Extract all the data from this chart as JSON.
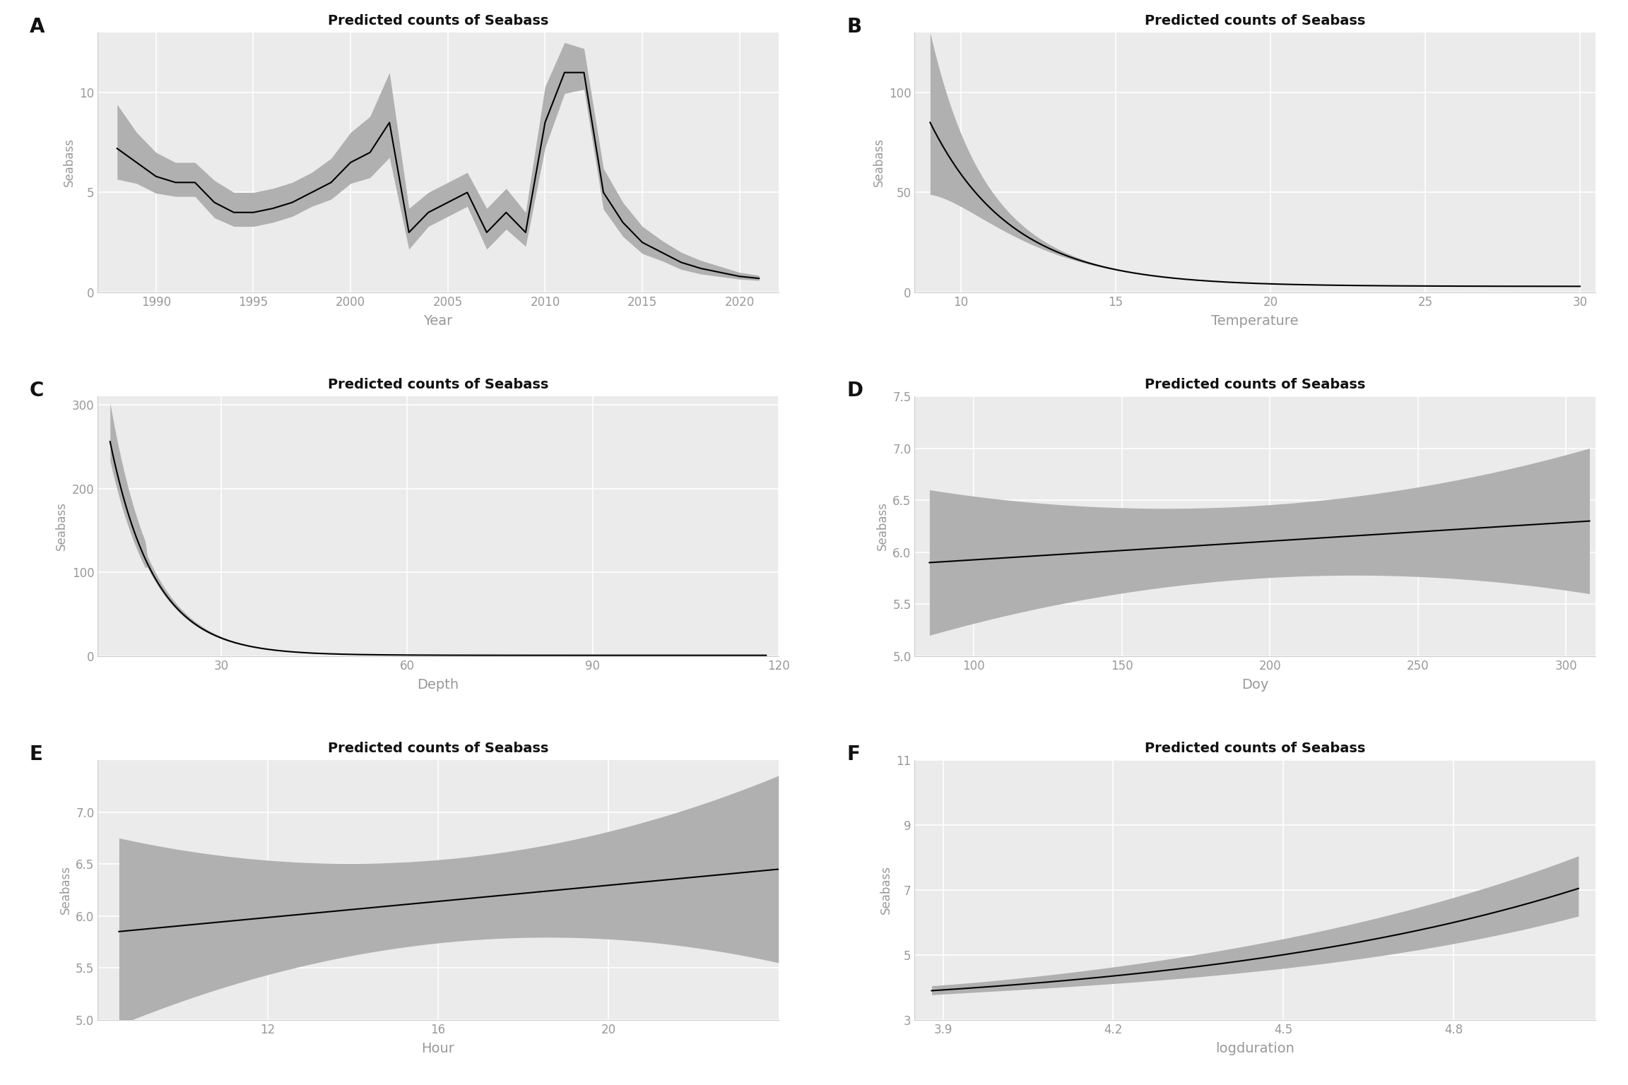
{
  "title": "Predicted counts of Seabass",
  "ylabel": "Seabass",
  "background_color": "#ffffff",
  "panel_bg": "#ebebeb",
  "grid_color": "#ffffff",
  "line_color": "#000000",
  "ci_color": "#b0b0b0",
  "tick_color": "#999999",
  "panel_labels": [
    "A",
    "B",
    "C",
    "D",
    "E",
    "F"
  ],
  "panels": [
    {
      "xlabel": "Year",
      "xlim": [
        1987,
        2022
      ],
      "ylim": [
        0,
        13
      ],
      "xticks": [
        1990,
        1995,
        2000,
        2005,
        2010,
        2015,
        2020
      ],
      "yticks": [
        0,
        5,
        10
      ]
    },
    {
      "xlabel": "Temperature",
      "xlim": [
        8.5,
        30.5
      ],
      "ylim": [
        0,
        130
      ],
      "xticks": [
        10,
        15,
        20,
        25,
        30
      ],
      "yticks": [
        0,
        50,
        100
      ]
    },
    {
      "xlabel": "Depth",
      "xlim": [
        10,
        120
      ],
      "ylim": [
        0,
        310
      ],
      "xticks": [
        30,
        60,
        90,
        120
      ],
      "yticks": [
        0,
        100,
        200,
        300
      ]
    },
    {
      "xlabel": "Doy",
      "xlim": [
        80,
        310
      ],
      "ylim": [
        5.0,
        7.5
      ],
      "xticks": [
        100,
        150,
        200,
        250,
        300
      ],
      "yticks": [
        5.0,
        5.5,
        6.0,
        6.5,
        7.0,
        7.5
      ]
    },
    {
      "xlabel": "Hour",
      "xlim": [
        8,
        24
      ],
      "ylim": [
        5.0,
        7.5
      ],
      "xticks": [
        12,
        16,
        20
      ],
      "yticks": [
        5.0,
        5.5,
        6.0,
        6.5,
        7.0
      ]
    },
    {
      "xlabel": "logduration",
      "xlim": [
        3.85,
        5.05
      ],
      "ylim": [
        3,
        11
      ],
      "xticks": [
        3.9,
        4.2,
        4.5,
        4.8
      ],
      "yticks": [
        3,
        5,
        7,
        9,
        11
      ]
    }
  ]
}
